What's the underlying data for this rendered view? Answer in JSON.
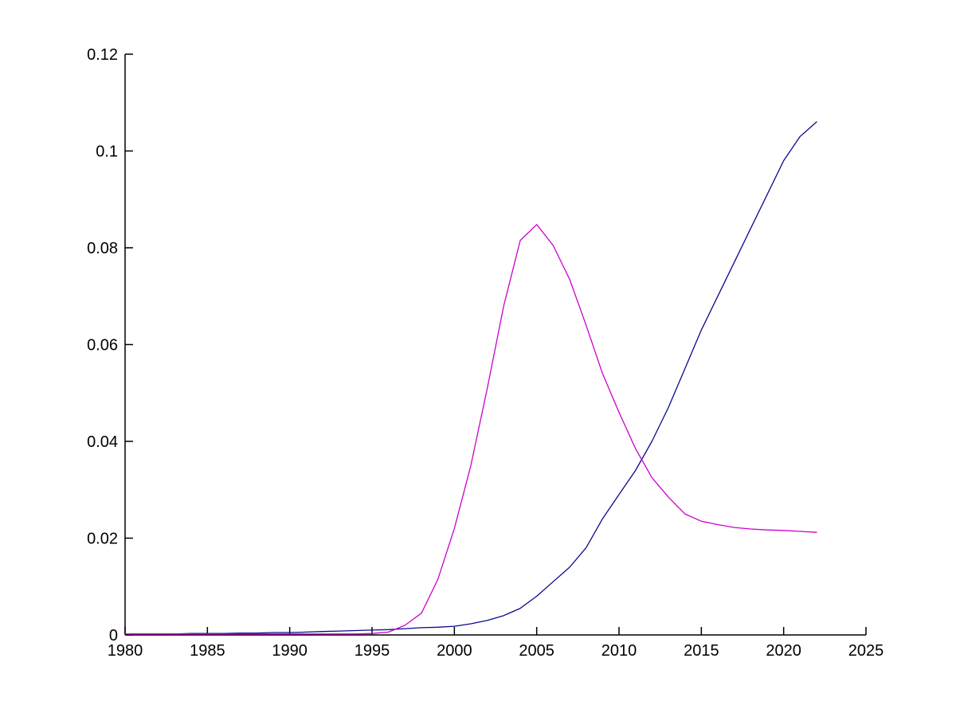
{
  "chart_data": {
    "type": "line",
    "title": "",
    "xlabel": "",
    "ylabel": "",
    "grid": false,
    "legend_position": "none",
    "x_range": [
      1980,
      2025
    ],
    "y_range": [
      0,
      0.12
    ],
    "x_ticks": [
      1980,
      1985,
      1990,
      1995,
      2000,
      2005,
      2010,
      2015,
      2020,
      2025
    ],
    "x_tick_labels": [
      "1980",
      "1985",
      "1990",
      "1995",
      "2000",
      "2005",
      "2010",
      "2015",
      "2020",
      "2025"
    ],
    "y_ticks": [
      0,
      0.02,
      0.04,
      0.06,
      0.08,
      0.1,
      0.12
    ],
    "y_tick_labels": [
      "0",
      "0.02",
      "0.04",
      "0.06",
      "0.08",
      "0.1",
      "0.12"
    ],
    "axis_color": "#000000",
    "x": [
      1980,
      1981,
      1982,
      1983,
      1984,
      1985,
      1986,
      1987,
      1988,
      1989,
      1990,
      1991,
      1992,
      1993,
      1994,
      1995,
      1996,
      1997,
      1998,
      1999,
      2000,
      2001,
      2002,
      2003,
      2004,
      2005,
      2006,
      2007,
      2008,
      2009,
      2010,
      2011,
      2012,
      2013,
      2014,
      2015,
      2016,
      2017,
      2018,
      2019,
      2020,
      2021,
      2022
    ],
    "series": [
      {
        "name": "blue-line",
        "color": "#0a0a8c",
        "values": [
          0.0002,
          0.0002,
          0.0002,
          0.0002,
          0.0003,
          0.0003,
          0.0003,
          0.0004,
          0.0004,
          0.0005,
          0.0005,
          0.0006,
          0.0007,
          0.0008,
          0.0009,
          0.001,
          0.0011,
          0.0013,
          0.0015,
          0.0016,
          0.0018,
          0.0023,
          0.003,
          0.004,
          0.0055,
          0.008,
          0.011,
          0.014,
          0.018,
          0.024,
          0.029,
          0.034,
          0.04,
          0.047,
          0.055,
          0.063,
          0.07,
          0.077,
          0.084,
          0.091,
          0.098,
          0.103,
          0.106
        ]
      },
      {
        "name": "magenta-line",
        "color": "#cc00cc",
        "values": [
          0.0002,
          0.0002,
          0.0002,
          0.0002,
          0.0002,
          0.0002,
          0.0002,
          0.0002,
          0.0002,
          0.0002,
          0.0002,
          0.0002,
          0.0002,
          0.0002,
          0.0002,
          0.0003,
          0.0006,
          0.002,
          0.0045,
          0.0115,
          0.022,
          0.035,
          0.051,
          0.068,
          0.0815,
          0.0848,
          0.0805,
          0.0735,
          0.064,
          0.054,
          0.046,
          0.0385,
          0.0325,
          0.0285,
          0.025,
          0.0235,
          0.0228,
          0.0222,
          0.0219,
          0.0217,
          0.0216,
          0.0214,
          0.0212
        ]
      }
    ]
  }
}
